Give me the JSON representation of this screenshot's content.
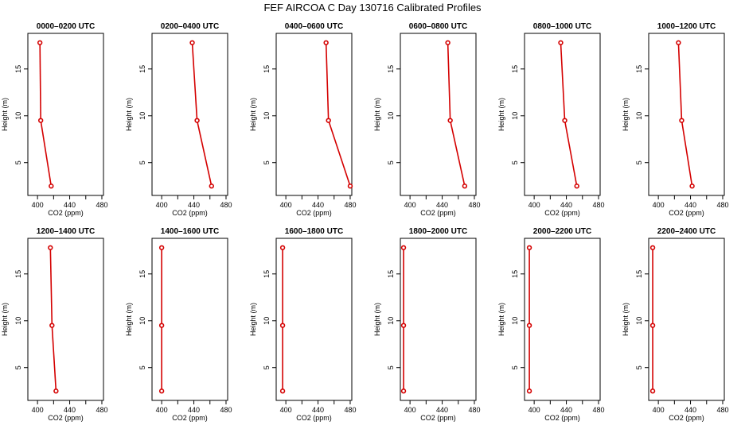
{
  "figure": {
    "title": "FEF AIRCOA C  Day 130716  Calibrated Profiles"
  },
  "chart_data": [
    {
      "type": "line",
      "title": "0000–0200 UTC",
      "xlabel": "CO2 (ppm)",
      "ylabel": "Height (m)",
      "xlim": [
        388,
        482
      ],
      "ylim": [
        1.5,
        18.8
      ],
      "xticks": [
        "400",
        "440",
        "480"
      ],
      "yticks": [
        "5",
        "10",
        "15"
      ],
      "points": [
        {
          "x": 417,
          "y": 2.5
        },
        {
          "x": 404,
          "y": 9.5
        },
        {
          "x": 403,
          "y": 17.8
        }
      ]
    },
    {
      "type": "line",
      "title": "0200–0400 UTC",
      "xlabel": "CO2 (ppm)",
      "ylabel": "Height (m)",
      "xlim": [
        388,
        482
      ],
      "ylim": [
        1.5,
        18.8
      ],
      "xticks": [
        "400",
        "440",
        "480"
      ],
      "yticks": [
        "5",
        "10",
        "15"
      ],
      "points": [
        {
          "x": 462,
          "y": 2.5
        },
        {
          "x": 444,
          "y": 9.5
        },
        {
          "x": 438,
          "y": 17.8
        }
      ]
    },
    {
      "type": "line",
      "title": "0400–0600 UTC",
      "xlabel": "CO2 (ppm)",
      "ylabel": "Height (m)",
      "xlim": [
        388,
        482
      ],
      "ylim": [
        1.5,
        18.8
      ],
      "xticks": [
        "400",
        "440",
        "480"
      ],
      "yticks": [
        "5",
        "10",
        "15"
      ],
      "points": [
        {
          "x": 480,
          "y": 2.5
        },
        {
          "x": 453,
          "y": 9.5
        },
        {
          "x": 450,
          "y": 17.8
        }
      ]
    },
    {
      "type": "line",
      "title": "0600–0800 UTC",
      "xlabel": "CO2 (ppm)",
      "ylabel": "Height (m)",
      "xlim": [
        388,
        482
      ],
      "ylim": [
        1.5,
        18.8
      ],
      "xticks": [
        "400",
        "440",
        "480"
      ],
      "yticks": [
        "5",
        "10",
        "15"
      ],
      "points": [
        {
          "x": 468,
          "y": 2.5
        },
        {
          "x": 450,
          "y": 9.5
        },
        {
          "x": 447,
          "y": 17.8
        }
      ]
    },
    {
      "type": "line",
      "title": "0800–1000 UTC",
      "xlabel": "CO2 (ppm)",
      "ylabel": "Height (m)",
      "xlim": [
        388,
        482
      ],
      "ylim": [
        1.5,
        18.8
      ],
      "xticks": [
        "400",
        "440",
        "480"
      ],
      "yticks": [
        "5",
        "10",
        "15"
      ],
      "points": [
        {
          "x": 453,
          "y": 2.5
        },
        {
          "x": 438,
          "y": 9.5
        },
        {
          "x": 433,
          "y": 17.8
        }
      ]
    },
    {
      "type": "line",
      "title": "1000–1200 UTC",
      "xlabel": "CO2 (ppm)",
      "ylabel": "Height (m)",
      "xlim": [
        388,
        482
      ],
      "ylim": [
        1.5,
        18.8
      ],
      "xticks": [
        "400",
        "440",
        "480"
      ],
      "yticks": [
        "5",
        "10",
        "15"
      ],
      "points": [
        {
          "x": 442,
          "y": 2.5
        },
        {
          "x": 429,
          "y": 9.5
        },
        {
          "x": 425,
          "y": 17.8
        }
      ]
    },
    {
      "type": "line",
      "title": "1200–1400 UTC",
      "xlabel": "CO2 (ppm)",
      "ylabel": "Height (m)",
      "xlim": [
        388,
        482
      ],
      "ylim": [
        1.5,
        18.8
      ],
      "xticks": [
        "400",
        "440",
        "480"
      ],
      "yticks": [
        "5",
        "10",
        "15"
      ],
      "points": [
        {
          "x": 423,
          "y": 2.5
        },
        {
          "x": 418,
          "y": 9.5
        },
        {
          "x": 416,
          "y": 17.8
        }
      ]
    },
    {
      "type": "line",
      "title": "1400–1600 UTC",
      "xlabel": "CO2 (ppm)",
      "ylabel": "Height (m)",
      "xlim": [
        388,
        482
      ],
      "ylim": [
        1.5,
        18.8
      ],
      "xticks": [
        "400",
        "440",
        "480"
      ],
      "yticks": [
        "5",
        "10",
        "15"
      ],
      "points": [
        {
          "x": 400,
          "y": 2.5
        },
        {
          "x": 400,
          "y": 9.5
        },
        {
          "x": 400,
          "y": 17.8
        }
      ]
    },
    {
      "type": "line",
      "title": "1600–1800 UTC",
      "xlabel": "CO2 (ppm)",
      "ylabel": "Height (m)",
      "xlim": [
        388,
        482
      ],
      "ylim": [
        1.5,
        18.8
      ],
      "xticks": [
        "400",
        "440",
        "480"
      ],
      "yticks": [
        "5",
        "10",
        "15"
      ],
      "points": [
        {
          "x": 396,
          "y": 2.5
        },
        {
          "x": 396,
          "y": 9.5
        },
        {
          "x": 396,
          "y": 17.8
        }
      ]
    },
    {
      "type": "line",
      "title": "1800–2000 UTC",
      "xlabel": "CO2 (ppm)",
      "ylabel": "Height (m)",
      "xlim": [
        388,
        482
      ],
      "ylim": [
        1.5,
        18.8
      ],
      "xticks": [
        "400",
        "440",
        "480"
      ],
      "yticks": [
        "5",
        "10",
        "15"
      ],
      "points": [
        {
          "x": 392,
          "y": 2.5
        },
        {
          "x": 392,
          "y": 9.5
        },
        {
          "x": 392,
          "y": 17.8
        }
      ]
    },
    {
      "type": "line",
      "title": "2000–2200 UTC",
      "xlabel": "CO2 (ppm)",
      "ylabel": "Height (m)",
      "xlim": [
        388,
        482
      ],
      "ylim": [
        1.5,
        18.8
      ],
      "xticks": [
        "400",
        "440",
        "480"
      ],
      "yticks": [
        "5",
        "10",
        "15"
      ],
      "points": [
        {
          "x": 394,
          "y": 2.5
        },
        {
          "x": 394,
          "y": 9.5
        },
        {
          "x": 394,
          "y": 17.8
        }
      ]
    },
    {
      "type": "line",
      "title": "2200–2400 UTC",
      "xlabel": "CO2 (ppm)",
      "ylabel": "Height (m)",
      "xlim": [
        388,
        482
      ],
      "ylim": [
        1.5,
        18.8
      ],
      "xticks": [
        "400",
        "440",
        "480"
      ],
      "yticks": [
        "5",
        "10",
        "15"
      ],
      "points": [
        {
          "x": 393,
          "y": 2.5
        },
        {
          "x": 393,
          "y": 9.5
        },
        {
          "x": 393,
          "y": 17.8
        }
      ]
    }
  ]
}
